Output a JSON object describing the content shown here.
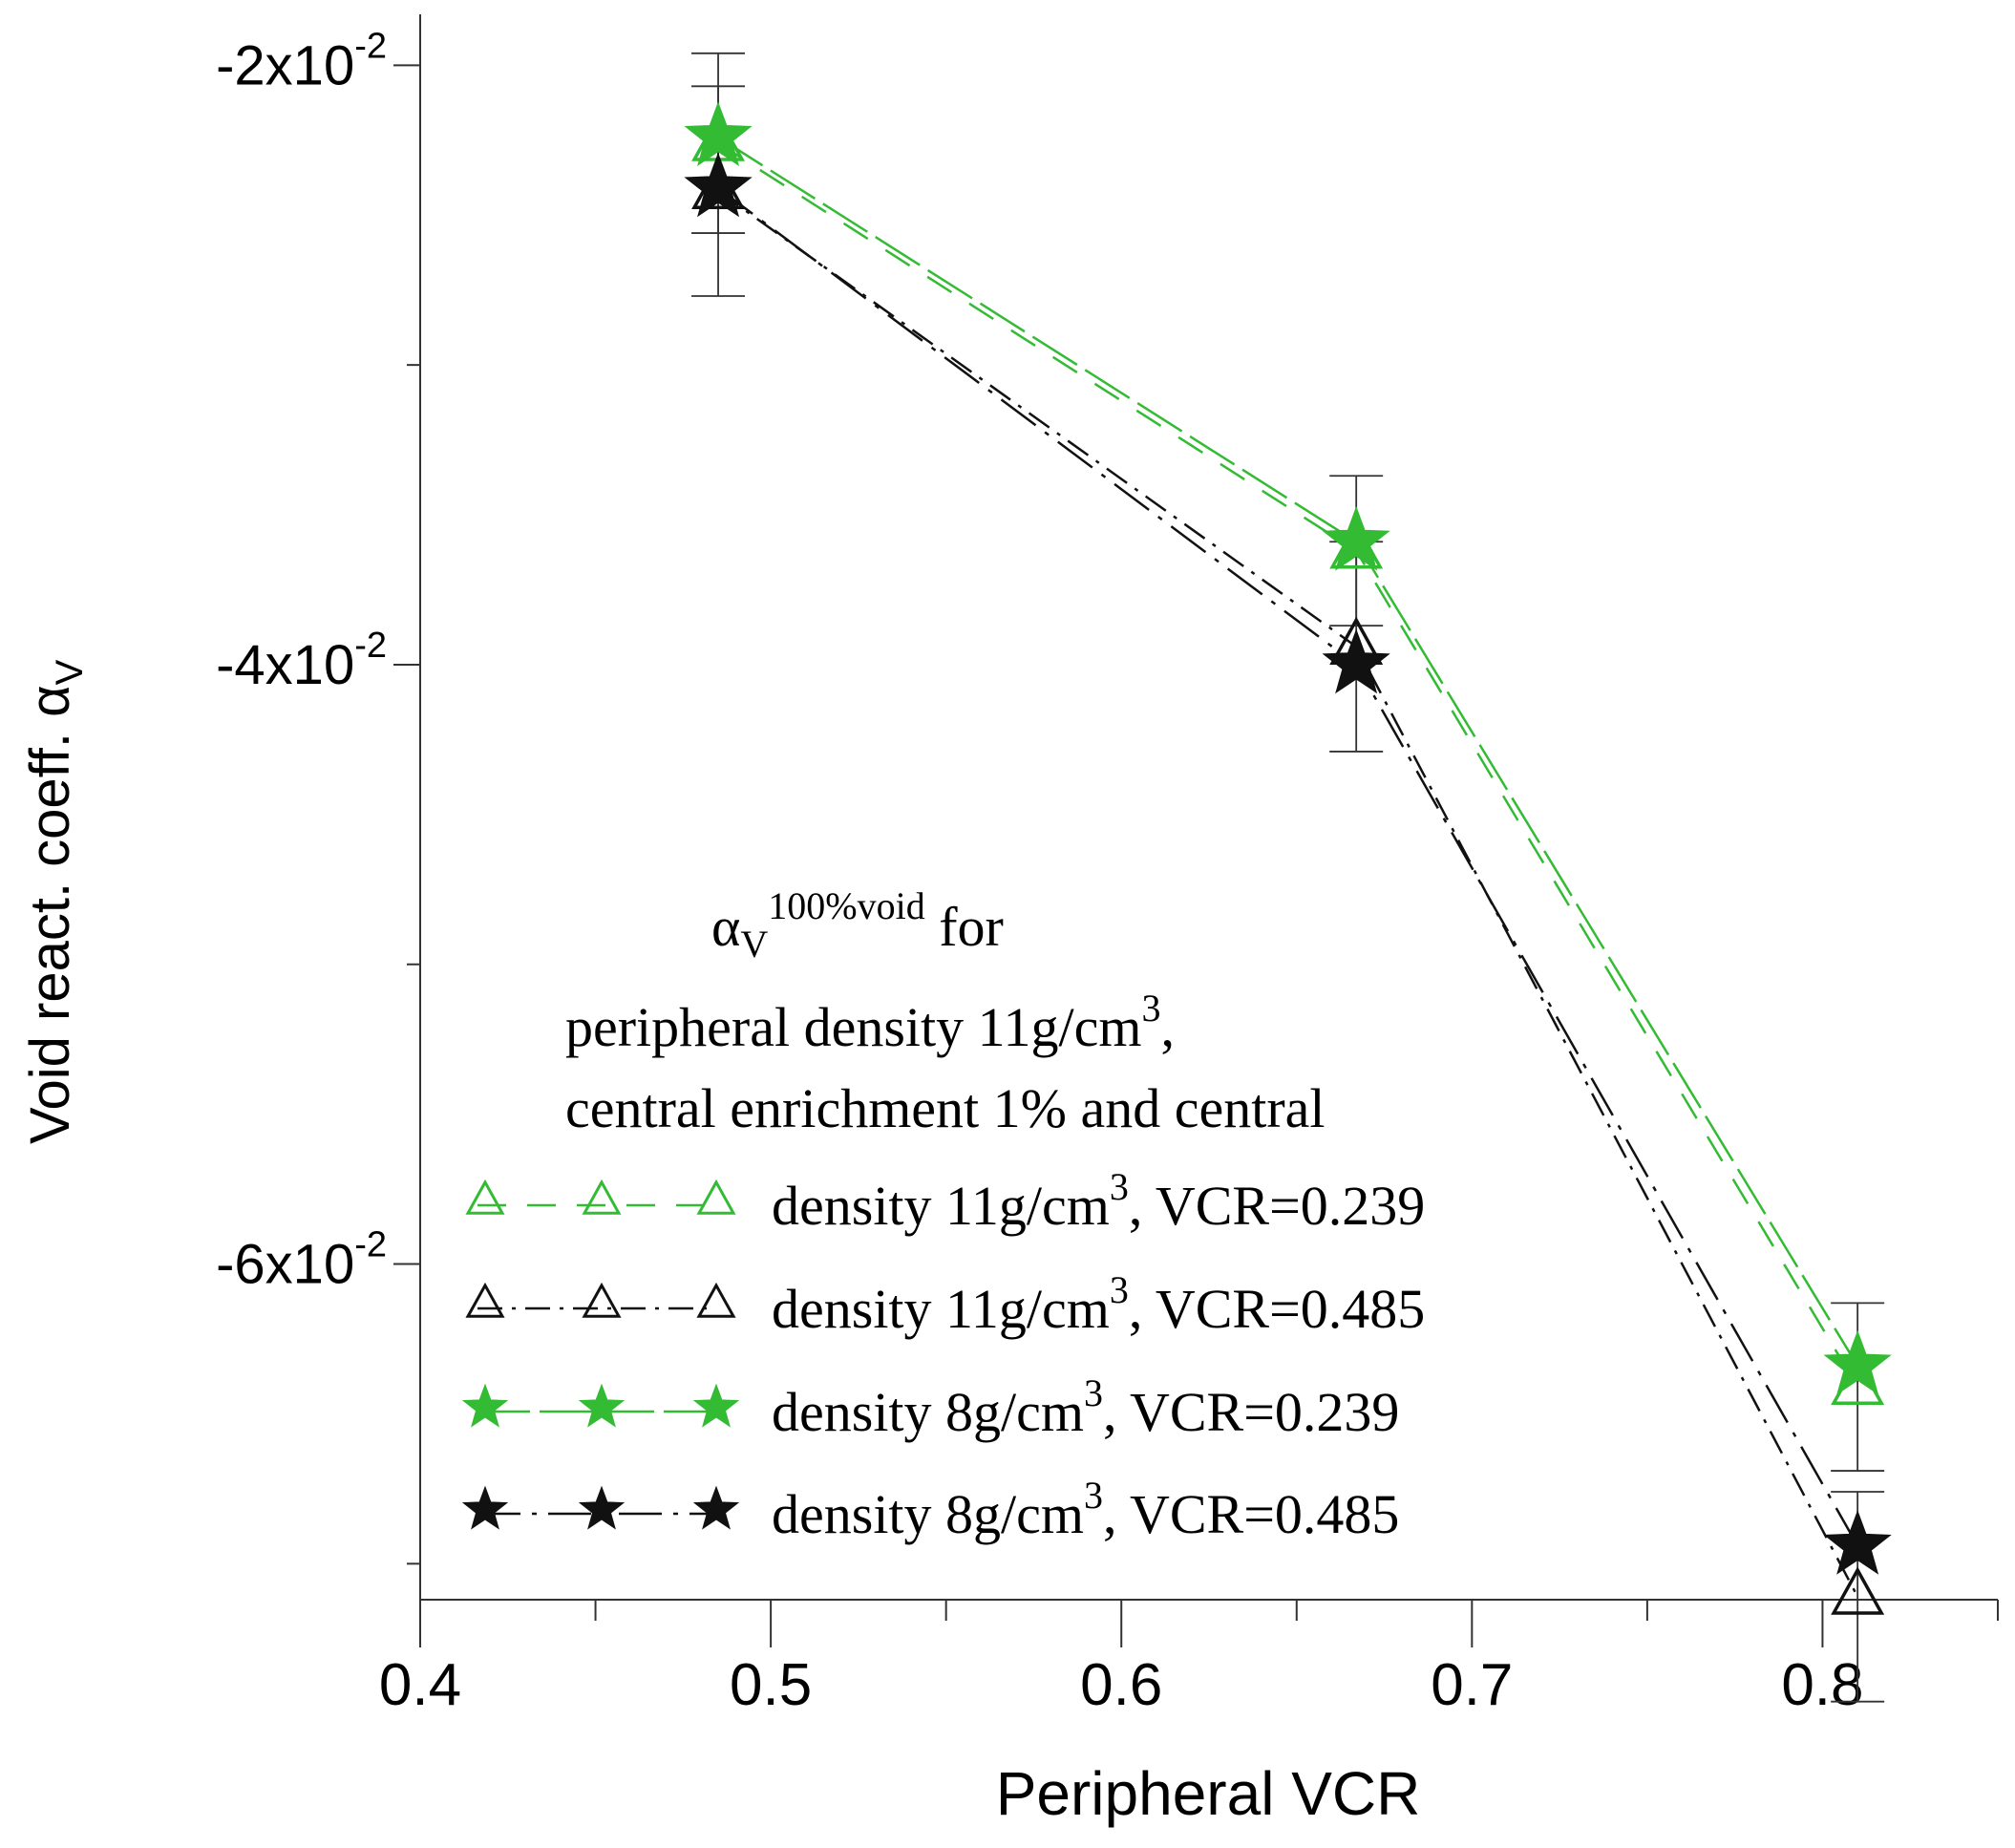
{
  "chart_data": {
    "type": "line",
    "xlabel": "Peripheral VCR",
    "ylabel": "Void react. coeff. α",
    "ylabel_sub": "V",
    "xlim": [
      0.4,
      0.85
    ],
    "ylim": [
      -0.0712,
      -0.0183
    ],
    "x_ticks": [
      "0.4",
      "0.5",
      "0.6",
      "0.7",
      "0.8"
    ],
    "y_ticks": [
      {
        "value": -0.02,
        "base": "-2x10",
        "exp": "-2"
      },
      {
        "value": -0.04,
        "base": "-4x10",
        "exp": "-2"
      },
      {
        "value": -0.06,
        "base": "-6x10",
        "exp": "-2"
      }
    ],
    "legend": {
      "title_symbol": "α",
      "title_sub": "V",
      "title_sup": "100%void",
      "title_rest": " for",
      "line1": "peripheral density 11g/cm",
      "line1_sup": "3",
      "line1_end": ",",
      "line2": "central enrichment 1% and central"
    },
    "series": [
      {
        "label_pre": "density 11g/cm",
        "label_sup": "3",
        "label_post": ", VCR=0.239",
        "color": "#33bb33",
        "marker": "triangle-open",
        "dash": "30,22",
        "x": [
          0.485,
          0.667,
          0.81
        ],
        "y": [
          -0.0226,
          -0.0362,
          -0.0641
        ],
        "err": [
          0.003,
          0.0025,
          0.0028
        ]
      },
      {
        "label_pre": "density 11g/cm",
        "label_sup": "3",
        "label_post": ", VCR=0.485",
        "color": "#111111",
        "marker": "triangle-open",
        "dash": "26,10,4,10",
        "x": [
          0.485,
          0.667,
          0.81
        ],
        "y": [
          -0.0242,
          -0.0394,
          -0.0711
        ],
        "err": [
          0.0035,
          0.0035,
          0.0035
        ]
      },
      {
        "label_pre": "density 8g/cm",
        "label_sup": "3",
        "label_post": ", VCR=0.239",
        "color": "#33bb33",
        "marker": "star",
        "dash": "55,10",
        "x": [
          0.485,
          0.667,
          0.81
        ],
        "y": [
          -0.0224,
          -0.0359,
          -0.0634
        ],
        "err": [
          0,
          0,
          0
        ]
      },
      {
        "label_pre": "density 8g/cm",
        "label_sup": "3",
        "label_post": ", VCR=0.485",
        "color": "#111111",
        "marker": "star",
        "dash": "45,12,5,12",
        "x": [
          0.485,
          0.667,
          0.81
        ],
        "y": [
          -0.0241,
          -0.04,
          -0.0694
        ],
        "err": [
          0,
          0,
          0
        ]
      }
    ]
  }
}
